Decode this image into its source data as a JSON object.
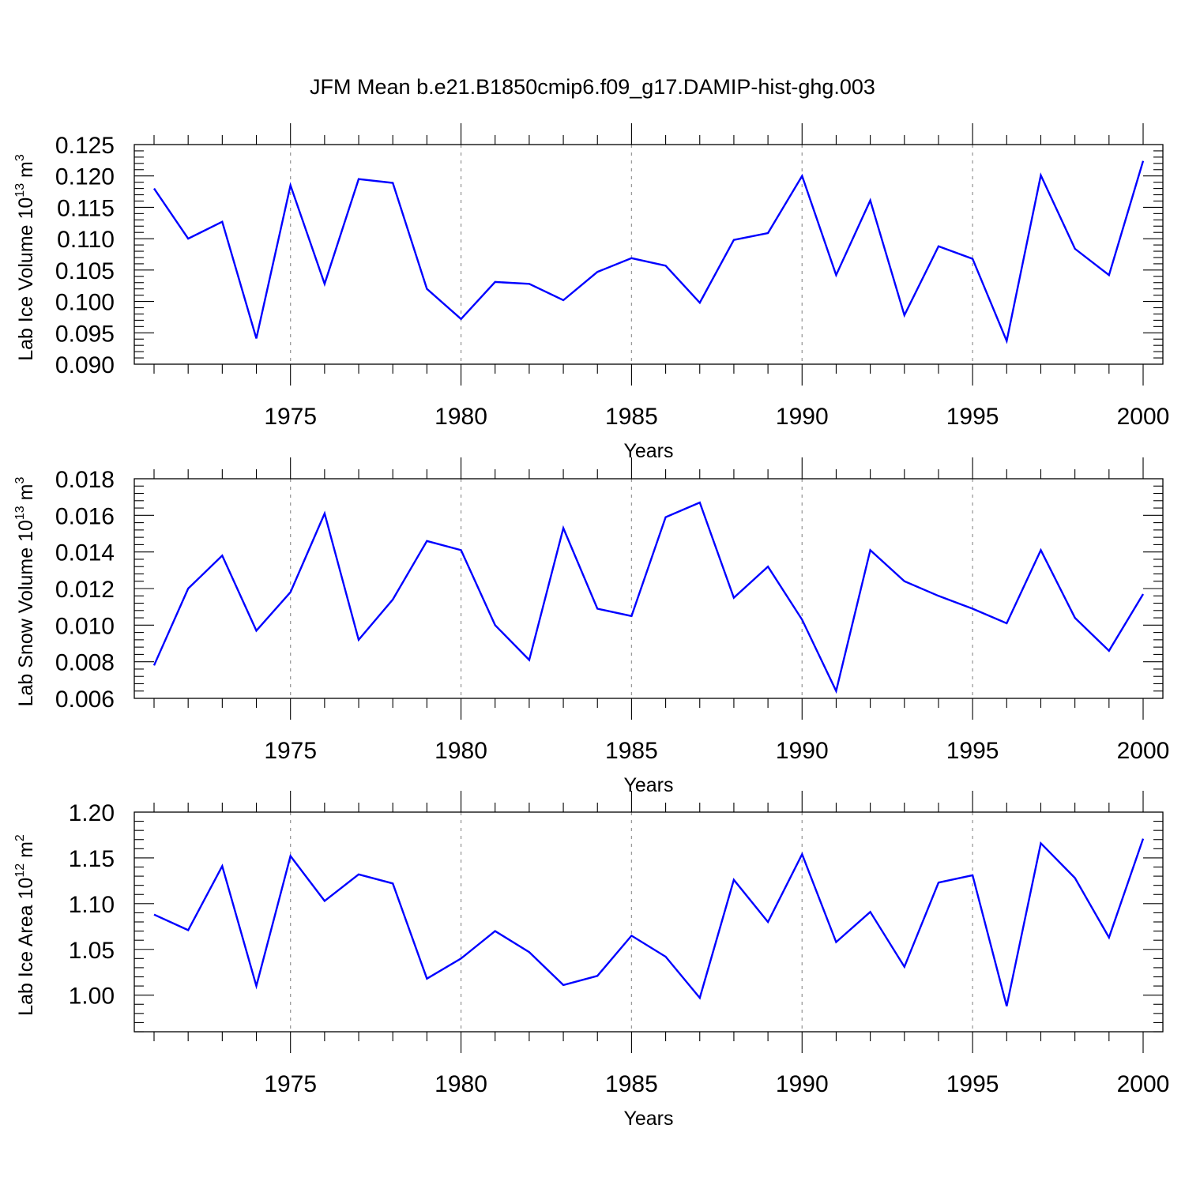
{
  "title": "JFM Mean b.e21.B1850cmip6.f09_g17.DAMIP-hist-ghg.003",
  "chart_data": [
    {
      "type": "line",
      "id": "ice-volume",
      "ylabel": "Lab Ice Volume 10",
      "ylabel_sup": "13",
      "ylabel_unit": " m",
      "ylabel_unit_sup": "3",
      "xlabel": "Years",
      "xlim": [
        1971,
        2000
      ],
      "ylim": [
        0.09,
        0.125
      ],
      "yticks": [
        0.09,
        0.095,
        0.1,
        0.105,
        0.11,
        0.115,
        0.12,
        0.125
      ],
      "yticklabels": [
        "0.090",
        "0.095",
        "0.100",
        "0.105",
        "0.110",
        "0.115",
        "0.120",
        "0.125"
      ],
      "ytick_minor": 0.001,
      "xticks": [
        1975,
        1980,
        1985,
        1990,
        1995,
        2000
      ],
      "xticklabels": [
        "1975",
        "1980",
        "1985",
        "1990",
        "1995",
        "2000"
      ],
      "grid": "vertical dashed at major x ticks",
      "color": "#0000ff",
      "x": [
        1971,
        1972,
        1973,
        1974,
        1975,
        1976,
        1977,
        1978,
        1979,
        1980,
        1981,
        1982,
        1983,
        1984,
        1985,
        1986,
        1987,
        1988,
        1989,
        1990,
        1991,
        1992,
        1993,
        1994,
        1995,
        1996,
        1997,
        1998,
        1999,
        2000
      ],
      "values": [
        0.118,
        0.11,
        0.1127,
        0.0941,
        0.1185,
        0.1028,
        0.1195,
        0.1189,
        0.102,
        0.0972,
        0.1031,
        0.1028,
        0.1002,
        0.1047,
        0.1069,
        0.1057,
        0.0998,
        0.1098,
        0.1109,
        0.12,
        0.1042,
        0.1161,
        0.0978,
        0.1088,
        0.1068,
        0.0937,
        0.1201,
        0.1084,
        0.1042,
        0.1224
      ]
    },
    {
      "type": "line",
      "id": "snow-volume",
      "ylabel": "Lab Snow Volume 10",
      "ylabel_sup": "13",
      "ylabel_unit": " m",
      "ylabel_unit_sup": "3",
      "xlabel": "Years",
      "xlim": [
        1971,
        2000
      ],
      "ylim": [
        0.006,
        0.018
      ],
      "yticks": [
        0.006,
        0.008,
        0.01,
        0.012,
        0.014,
        0.016,
        0.018
      ],
      "yticklabels": [
        "0.006",
        "0.008",
        "0.010",
        "0.012",
        "0.014",
        "0.016",
        "0.018"
      ],
      "ytick_minor": 0.0004,
      "xticks": [
        1975,
        1980,
        1985,
        1990,
        1995,
        2000
      ],
      "xticklabels": [
        "1975",
        "1980",
        "1985",
        "1990",
        "1995",
        "2000"
      ],
      "grid": "vertical dashed at major x ticks",
      "color": "#0000ff",
      "x": [
        1971,
        1972,
        1973,
        1974,
        1975,
        1976,
        1977,
        1978,
        1979,
        1980,
        1981,
        1982,
        1983,
        1984,
        1985,
        1986,
        1987,
        1988,
        1989,
        1990,
        1991,
        1992,
        1993,
        1994,
        1995,
        1996,
        1997,
        1998,
        1999,
        2000
      ],
      "values": [
        0.0078,
        0.012,
        0.0138,
        0.0097,
        0.0118,
        0.0161,
        0.0092,
        0.0114,
        0.0146,
        0.0141,
        0.01,
        0.0081,
        0.0153,
        0.0109,
        0.0105,
        0.0159,
        0.0167,
        0.0115,
        0.0132,
        0.0103,
        0.0064,
        0.0141,
        0.0124,
        0.0116,
        0.0109,
        0.0101,
        0.0141,
        0.0104,
        0.0086,
        0.0117
      ]
    },
    {
      "type": "line",
      "id": "ice-area",
      "ylabel": "Lab Ice Area 10",
      "ylabel_sup": "12",
      "ylabel_unit": " m",
      "ylabel_unit_sup": "2",
      "xlabel": "Years",
      "xlim": [
        1971,
        2000
      ],
      "ylim": [
        0.96,
        1.2
      ],
      "yticks": [
        1.0,
        1.05,
        1.1,
        1.15,
        1.2
      ],
      "yticklabels": [
        "1.00",
        "1.05",
        "1.10",
        "1.15",
        "1.20"
      ],
      "ytick_minor": 0.01,
      "xticks": [
        1975,
        1980,
        1985,
        1990,
        1995,
        2000
      ],
      "xticklabels": [
        "1975",
        "1980",
        "1985",
        "1990",
        "1995",
        "2000"
      ],
      "grid": "vertical dashed at major x ticks",
      "color": "#0000ff",
      "x": [
        1971,
        1972,
        1973,
        1974,
        1975,
        1976,
        1977,
        1978,
        1979,
        1980,
        1981,
        1982,
        1983,
        1984,
        1985,
        1986,
        1987,
        1988,
        1989,
        1990,
        1991,
        1992,
        1993,
        1994,
        1995,
        1996,
        1997,
        1998,
        1999,
        2000
      ],
      "values": [
        1.088,
        1.071,
        1.141,
        1.01,
        1.152,
        1.103,
        1.132,
        1.122,
        1.018,
        1.04,
        1.07,
        1.047,
        1.011,
        1.021,
        1.065,
        1.042,
        0.997,
        1.126,
        1.08,
        1.154,
        1.058,
        1.091,
        1.031,
        1.123,
        1.131,
        0.988,
        1.166,
        1.128,
        1.063,
        1.171
      ]
    }
  ]
}
